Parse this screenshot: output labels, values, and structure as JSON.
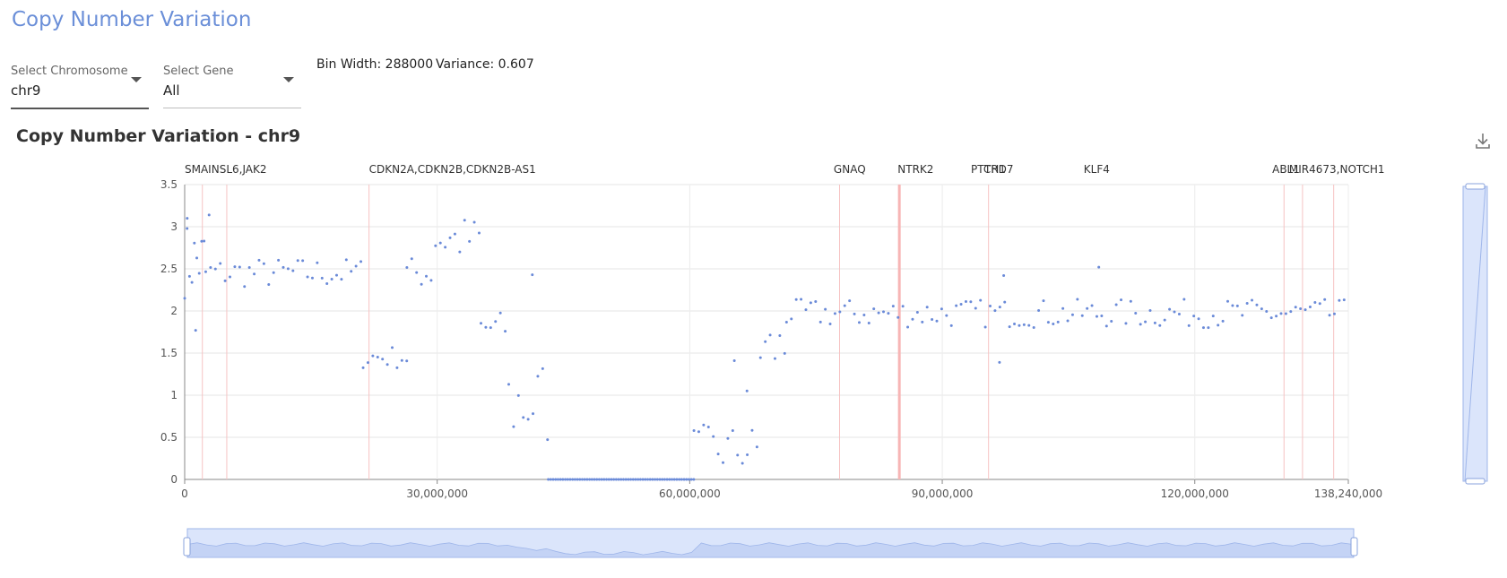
{
  "page": {
    "title": "Copy Number Variation"
  },
  "controls": {
    "chromosome": {
      "label": "Select Chromosome",
      "value": "chr9"
    },
    "gene": {
      "label": "Select Gene",
      "value": "All"
    },
    "bin_width_text": "Bin Width: 288000",
    "variance_text": "Variance: 0.607"
  },
  "chart_title": "Copy Number Variation - chr9",
  "icons": {
    "download": "download-icon"
  },
  "colors": {
    "points": "#6a8ad8",
    "title": "#6b8fd8",
    "gene_line": "#f6c3c3",
    "zoom_fill": "#dbe5fb",
    "zoom_border": "#9fb6ea"
  },
  "chart_data": {
    "type": "scatter",
    "title": "Copy Number Variation - chr9",
    "xlabel": "",
    "ylabel": "",
    "xlim": [
      0,
      138240000
    ],
    "ylim": [
      0,
      3.5
    ],
    "x_ticks": [
      0,
      30000000,
      60000000,
      90000000,
      120000000,
      138240000
    ],
    "x_tick_labels": [
      "0",
      "30,000,000",
      "60,000,000",
      "90,000,000",
      "120,000,000",
      "138,240,000"
    ],
    "y_ticks": [
      0,
      0.5,
      1,
      1.5,
      2,
      2.5,
      3,
      3.5
    ],
    "y_tick_labels": [
      "0",
      "0.5",
      "1",
      "1.5",
      "2",
      "2.5",
      "3",
      "3.5"
    ],
    "grid": true,
    "gene_annotations": [
      {
        "label": "SMAINSL6,JAK2",
        "x": 0,
        "lines": [
          2100000,
          5000000
        ]
      },
      {
        "label": "CDKN2A,CDKN2B,CDKN2B-AS1",
        "x": 21900000,
        "lines": [
          21900000
        ]
      },
      {
        "label": "GNAQ",
        "x": 77100000,
        "lines": [
          77800000
        ]
      },
      {
        "label": "NTRK2",
        "x": 84700000,
        "lines": [
          84900000
        ],
        "highlight": true
      },
      {
        "label": "PTCH1",
        "x": 93400000,
        "lines": [
          95500000
        ]
      },
      {
        "label": "TRD7",
        "x": 95000000,
        "lines": []
      },
      {
        "label": "KLF4",
        "x": 106800000,
        "lines": []
      },
      {
        "label": "ABL1",
        "x": 129200000,
        "lines": [
          130600000
        ]
      },
      {
        "label": "MIR4673,NOTCH1",
        "x": 131200000,
        "lines": [
          132800000,
          136500000
        ]
      }
    ],
    "segments": [
      {
        "from": 0,
        "to": 2500000,
        "level": 2.6,
        "noise": 0.45,
        "step": 288000
      },
      {
        "from": 2500000,
        "to": 21200000,
        "level": 2.45,
        "noise": 0.18,
        "step": 576000
      },
      {
        "from": 21200000,
        "to": 26400000,
        "level": 1.45,
        "noise": 0.14,
        "step": 576000
      },
      {
        "from": 26400000,
        "to": 29800000,
        "level": 2.45,
        "noise": 0.2,
        "step": 576000
      },
      {
        "from": 29800000,
        "to": 35200000,
        "level": 2.85,
        "noise": 0.28,
        "step": 576000
      },
      {
        "from": 35200000,
        "to": 38500000,
        "level": 1.8,
        "noise": 0.2,
        "step": 576000
      },
      {
        "from": 38500000,
        "to": 43200000,
        "level": 0.9,
        "noise": 0.55,
        "step": 576000
      },
      {
        "from": 43200000,
        "to": 60500000,
        "level": 0.0,
        "noise": 0.0,
        "step": 288000
      },
      {
        "from": 60500000,
        "to": 68400000,
        "level": 0.35,
        "noise": 0.3,
        "step": 576000
      },
      {
        "from": 68400000,
        "to": 71500000,
        "level": 1.55,
        "noise": 0.35,
        "step": 576000
      },
      {
        "from": 71500000,
        "to": 138240000,
        "level": 1.97,
        "noise": 0.17,
        "step": 576000
      }
    ],
    "outliers": [
      {
        "x": 300000,
        "y": 3.1
      },
      {
        "x": 1300000,
        "y": 1.77
      },
      {
        "x": 2900000,
        "y": 3.14
      },
      {
        "x": 41300000,
        "y": 2.43
      },
      {
        "x": 65300000,
        "y": 1.41
      },
      {
        "x": 66800000,
        "y": 1.05
      },
      {
        "x": 97300000,
        "y": 2.42
      },
      {
        "x": 108600000,
        "y": 2.52
      },
      {
        "x": 96800000,
        "y": 1.39
      }
    ]
  },
  "navigator": {
    "label": "range navigator"
  }
}
